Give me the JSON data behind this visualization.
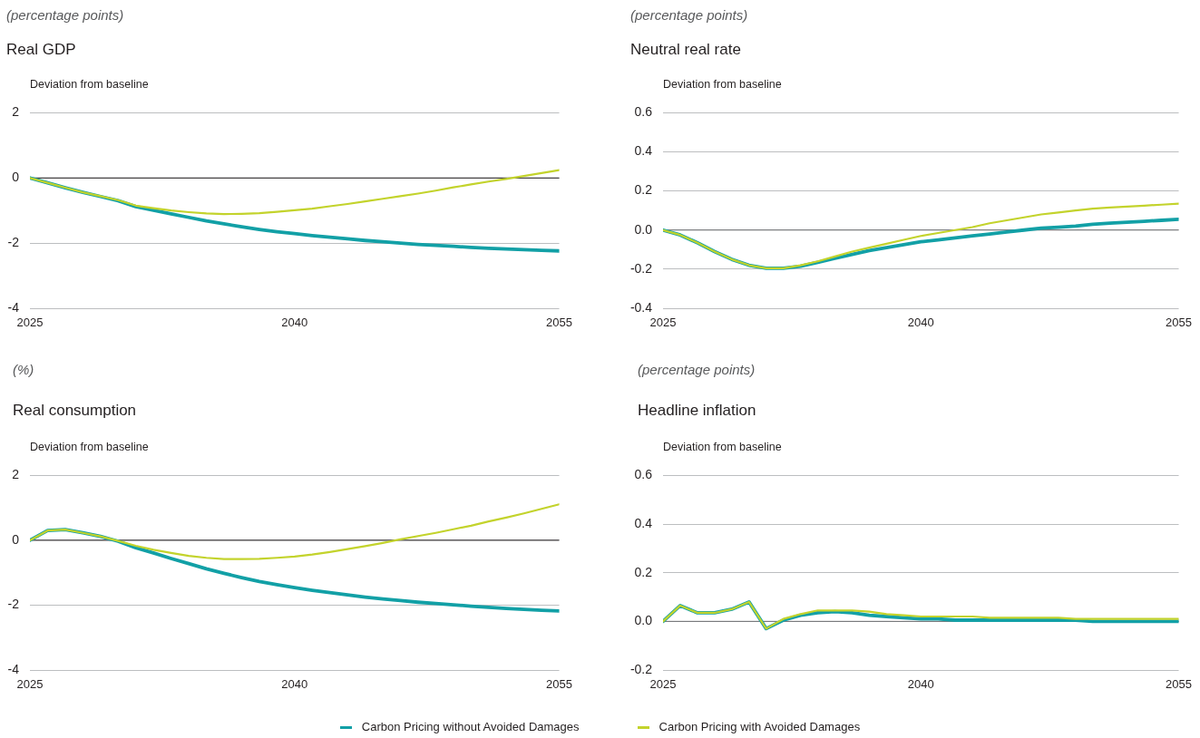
{
  "chart_data": [
    {
      "type": "line",
      "subtitle": "(percentage points)",
      "title": "Real GDP",
      "ylabel": "Deviation from baseline",
      "x": [
        2025,
        2026,
        2027,
        2028,
        2029,
        2030,
        2031,
        2032,
        2033,
        2034,
        2035,
        2036,
        2037,
        2038,
        2039,
        2040,
        2041,
        2042,
        2043,
        2044,
        2045,
        2046,
        2047,
        2048,
        2049,
        2050,
        2051,
        2052,
        2053,
        2054,
        2055
      ],
      "xlim": [
        2025,
        2055
      ],
      "xticks": [
        2025,
        2040,
        2055
      ],
      "ylim": [
        -4,
        2
      ],
      "yticks": [
        -4,
        -2,
        0,
        2
      ],
      "grid": "y",
      "ref_lines": [
        {
          "axis": "y",
          "value": 0,
          "color": "#231f20"
        }
      ],
      "series": [
        {
          "color": "#12a0a6",
          "values": [
            0,
            -0.15,
            -0.3,
            -0.44,
            -0.57,
            -0.7,
            -0.88,
            -0.99,
            -1.1,
            -1.21,
            -1.32,
            -1.41,
            -1.5,
            -1.58,
            -1.65,
            -1.71,
            -1.77,
            -1.82,
            -1.87,
            -1.92,
            -1.96,
            -2.0,
            -2.04,
            -2.07,
            -2.1,
            -2.13,
            -2.16,
            -2.18,
            -2.2,
            -2.22,
            -2.24
          ]
        },
        {
          "color": "#c3d32c",
          "values": [
            0,
            -0.15,
            -0.3,
            -0.44,
            -0.56,
            -0.68,
            -0.85,
            -0.93,
            -1.0,
            -1.05,
            -1.09,
            -1.11,
            -1.1,
            -1.08,
            -1.04,
            -0.99,
            -0.94,
            -0.87,
            -0.8,
            -0.72,
            -0.64,
            -0.56,
            -0.48,
            -0.39,
            -0.29,
            -0.2,
            -0.11,
            -0.03,
            0.06,
            0.15,
            0.24
          ]
        }
      ]
    },
    {
      "type": "line",
      "subtitle": "(percentage points)",
      "title": "Neutral real rate",
      "ylabel": "Deviation from baseline",
      "x": [
        2025,
        2026,
        2027,
        2028,
        2029,
        2030,
        2031,
        2032,
        2033,
        2034,
        2035,
        2036,
        2037,
        2038,
        2039,
        2040,
        2041,
        2042,
        2043,
        2044,
        2045,
        2046,
        2047,
        2048,
        2049,
        2050,
        2051,
        2052,
        2053,
        2054,
        2055
      ],
      "xlim": [
        2025,
        2055
      ],
      "xticks": [
        2025,
        2040,
        2055
      ],
      "ylim": [
        -0.4,
        0.6
      ],
      "yticks": [
        -0.4,
        -0.2,
        {
          "value": 0,
          "label": "0.0"
        },
        0.2,
        0.4,
        0.6
      ],
      "grid": "y",
      "ref_lines": [
        {
          "axis": "y",
          "value": 0,
          "color": "#6d6e71"
        }
      ],
      "series": [
        {
          "color": "#12a0a6",
          "values": [
            0,
            -0.025,
            -0.065,
            -0.11,
            -0.15,
            -0.18,
            -0.195,
            -0.195,
            -0.185,
            -0.165,
            -0.145,
            -0.125,
            -0.105,
            -0.09,
            -0.075,
            -0.06,
            -0.05,
            -0.04,
            -0.03,
            -0.02,
            -0.01,
            0,
            0.01,
            0.015,
            0.02,
            0.03,
            0.035,
            0.04,
            0.045,
            0.05,
            0.055
          ]
        },
        {
          "color": "#c3d32c",
          "values": [
            0,
            -0.025,
            -0.065,
            -0.11,
            -0.15,
            -0.18,
            -0.195,
            -0.195,
            -0.18,
            -0.16,
            -0.135,
            -0.11,
            -0.09,
            -0.07,
            -0.05,
            -0.03,
            -0.015,
            0,
            0.015,
            0.035,
            0.05,
            0.065,
            0.08,
            0.09,
            0.1,
            0.11,
            0.115,
            0.12,
            0.125,
            0.13,
            0.135
          ]
        }
      ]
    },
    {
      "type": "line",
      "subtitle": "(%)",
      "title": "Real consumption",
      "ylabel": "Deviation from baseline",
      "x": [
        2025,
        2026,
        2027,
        2028,
        2029,
        2030,
        2031,
        2032,
        2033,
        2034,
        2035,
        2036,
        2037,
        2038,
        2039,
        2040,
        2041,
        2042,
        2043,
        2044,
        2045,
        2046,
        2047,
        2048,
        2049,
        2050,
        2051,
        2052,
        2053,
        2054,
        2055
      ],
      "xlim": [
        2025,
        2055
      ],
      "xticks": [
        2025,
        2040,
        2055
      ],
      "ylim": [
        -4,
        2
      ],
      "yticks": [
        -4,
        -2,
        0,
        2
      ],
      "grid": "y",
      "ref_lines": [
        {
          "axis": "y",
          "value": 0,
          "color": "#231f20"
        }
      ],
      "series": [
        {
          "color": "#12a0a6",
          "values": [
            0,
            0.3,
            0.33,
            0.23,
            0.12,
            -0.03,
            -0.23,
            -0.39,
            -0.56,
            -0.72,
            -0.88,
            -1.02,
            -1.15,
            -1.27,
            -1.37,
            -1.46,
            -1.54,
            -1.61,
            -1.68,
            -1.75,
            -1.81,
            -1.86,
            -1.91,
            -1.95,
            -1.99,
            -2.03,
            -2.07,
            -2.1,
            -2.13,
            -2.16,
            -2.18
          ]
        },
        {
          "color": "#c3d32c",
          "values": [
            0,
            0.3,
            0.33,
            0.23,
            0.12,
            -0.02,
            -0.17,
            -0.29,
            -0.39,
            -0.48,
            -0.54,
            -0.58,
            -0.58,
            -0.57,
            -0.54,
            -0.5,
            -0.44,
            -0.36,
            -0.27,
            -0.18,
            -0.08,
            0.03,
            0.13,
            0.23,
            0.34,
            0.45,
            0.58,
            0.7,
            0.83,
            0.97,
            1.11
          ]
        }
      ]
    },
    {
      "type": "line",
      "subtitle": "(percentage points)",
      "title": "Headline inflation",
      "ylabel": "Deviation from baseline",
      "x": [
        2025,
        2026,
        2027,
        2028,
        2029,
        2030,
        2031,
        2032,
        2033,
        2034,
        2035,
        2036,
        2037,
        2038,
        2039,
        2040,
        2041,
        2042,
        2043,
        2044,
        2045,
        2046,
        2047,
        2048,
        2049,
        2050,
        2051,
        2052,
        2053,
        2054,
        2055
      ],
      "xlim": [
        2025,
        2055
      ],
      "xticks": [
        2025,
        2040,
        2055
      ],
      "ylim": [
        -0.2,
        0.6
      ],
      "yticks": [
        -0.2,
        {
          "value": 0,
          "label": "0.0"
        },
        0.2,
        0.4,
        0.6
      ],
      "grid": "y",
      "ref_lines": [
        {
          "axis": "y",
          "value": 0,
          "color": "#6d6e71"
        }
      ],
      "legend": "bottom",
      "series": [
        {
          "name": "Carbon Pricing without Avoided Damages",
          "color": "#12a0a6",
          "values": [
            0,
            0.065,
            0.035,
            0.035,
            0.05,
            0.08,
            -0.03,
            0.005,
            0.025,
            0.035,
            0.04,
            0.035,
            0.025,
            0.02,
            0.015,
            0.01,
            0.01,
            0.005,
            0.005,
            0.005,
            0.005,
            0.005,
            0.005,
            0.005,
            0.005,
            0,
            0,
            0,
            0,
            0,
            0
          ]
        },
        {
          "name": "Carbon Pricing with Avoided Damages",
          "color": "#c3d32c",
          "values": [
            0,
            0.065,
            0.035,
            0.035,
            0.05,
            0.08,
            -0.03,
            0.01,
            0.03,
            0.045,
            0.045,
            0.045,
            0.04,
            0.03,
            0.025,
            0.02,
            0.02,
            0.02,
            0.02,
            0.015,
            0.015,
            0.015,
            0.015,
            0.015,
            0.01,
            0.01,
            0.01,
            0.01,
            0.01,
            0.01,
            0.01
          ]
        }
      ]
    }
  ]
}
